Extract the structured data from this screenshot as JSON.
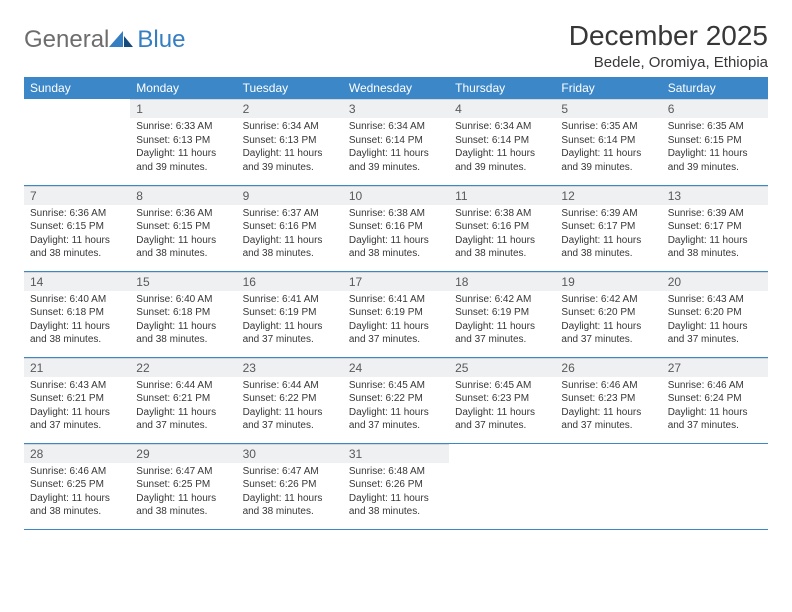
{
  "logo": {
    "text1": "General",
    "text2": "Blue"
  },
  "title": "December 2025",
  "location": "Bedele, Oromiya, Ethiopia",
  "colors": {
    "header_bg": "#3c87c7",
    "header_text": "#ffffff",
    "daynum_bg": "#eef0f2",
    "daynum_text": "#595959",
    "body_text": "#373737",
    "logo_gray": "#6d6d6d",
    "logo_blue": "#357ec2",
    "row_border": "#3c87c7"
  },
  "weekdays": [
    "Sunday",
    "Monday",
    "Tuesday",
    "Wednesday",
    "Thursday",
    "Friday",
    "Saturday"
  ],
  "weeks": [
    [
      null,
      {
        "n": "1",
        "sr": "6:33 AM",
        "ss": "6:13 PM",
        "dl": "11 hours and 39 minutes."
      },
      {
        "n": "2",
        "sr": "6:34 AM",
        "ss": "6:13 PM",
        "dl": "11 hours and 39 minutes."
      },
      {
        "n": "3",
        "sr": "6:34 AM",
        "ss": "6:14 PM",
        "dl": "11 hours and 39 minutes."
      },
      {
        "n": "4",
        "sr": "6:34 AM",
        "ss": "6:14 PM",
        "dl": "11 hours and 39 minutes."
      },
      {
        "n": "5",
        "sr": "6:35 AM",
        "ss": "6:14 PM",
        "dl": "11 hours and 39 minutes."
      },
      {
        "n": "6",
        "sr": "6:35 AM",
        "ss": "6:15 PM",
        "dl": "11 hours and 39 minutes."
      }
    ],
    [
      {
        "n": "7",
        "sr": "6:36 AM",
        "ss": "6:15 PM",
        "dl": "11 hours and 38 minutes."
      },
      {
        "n": "8",
        "sr": "6:36 AM",
        "ss": "6:15 PM",
        "dl": "11 hours and 38 minutes."
      },
      {
        "n": "9",
        "sr": "6:37 AM",
        "ss": "6:16 PM",
        "dl": "11 hours and 38 minutes."
      },
      {
        "n": "10",
        "sr": "6:38 AM",
        "ss": "6:16 PM",
        "dl": "11 hours and 38 minutes."
      },
      {
        "n": "11",
        "sr": "6:38 AM",
        "ss": "6:16 PM",
        "dl": "11 hours and 38 minutes."
      },
      {
        "n": "12",
        "sr": "6:39 AM",
        "ss": "6:17 PM",
        "dl": "11 hours and 38 minutes."
      },
      {
        "n": "13",
        "sr": "6:39 AM",
        "ss": "6:17 PM",
        "dl": "11 hours and 38 minutes."
      }
    ],
    [
      {
        "n": "14",
        "sr": "6:40 AM",
        "ss": "6:18 PM",
        "dl": "11 hours and 38 minutes."
      },
      {
        "n": "15",
        "sr": "6:40 AM",
        "ss": "6:18 PM",
        "dl": "11 hours and 38 minutes."
      },
      {
        "n": "16",
        "sr": "6:41 AM",
        "ss": "6:19 PM",
        "dl": "11 hours and 37 minutes."
      },
      {
        "n": "17",
        "sr": "6:41 AM",
        "ss": "6:19 PM",
        "dl": "11 hours and 37 minutes."
      },
      {
        "n": "18",
        "sr": "6:42 AM",
        "ss": "6:19 PM",
        "dl": "11 hours and 37 minutes."
      },
      {
        "n": "19",
        "sr": "6:42 AM",
        "ss": "6:20 PM",
        "dl": "11 hours and 37 minutes."
      },
      {
        "n": "20",
        "sr": "6:43 AM",
        "ss": "6:20 PM",
        "dl": "11 hours and 37 minutes."
      }
    ],
    [
      {
        "n": "21",
        "sr": "6:43 AM",
        "ss": "6:21 PM",
        "dl": "11 hours and 37 minutes."
      },
      {
        "n": "22",
        "sr": "6:44 AM",
        "ss": "6:21 PM",
        "dl": "11 hours and 37 minutes."
      },
      {
        "n": "23",
        "sr": "6:44 AM",
        "ss": "6:22 PM",
        "dl": "11 hours and 37 minutes."
      },
      {
        "n": "24",
        "sr": "6:45 AM",
        "ss": "6:22 PM",
        "dl": "11 hours and 37 minutes."
      },
      {
        "n": "25",
        "sr": "6:45 AM",
        "ss": "6:23 PM",
        "dl": "11 hours and 37 minutes."
      },
      {
        "n": "26",
        "sr": "6:46 AM",
        "ss": "6:23 PM",
        "dl": "11 hours and 37 minutes."
      },
      {
        "n": "27",
        "sr": "6:46 AM",
        "ss": "6:24 PM",
        "dl": "11 hours and 37 minutes."
      }
    ],
    [
      {
        "n": "28",
        "sr": "6:46 AM",
        "ss": "6:25 PM",
        "dl": "11 hours and 38 minutes."
      },
      {
        "n": "29",
        "sr": "6:47 AM",
        "ss": "6:25 PM",
        "dl": "11 hours and 38 minutes."
      },
      {
        "n": "30",
        "sr": "6:47 AM",
        "ss": "6:26 PM",
        "dl": "11 hours and 38 minutes."
      },
      {
        "n": "31",
        "sr": "6:48 AM",
        "ss": "6:26 PM",
        "dl": "11 hours and 38 minutes."
      },
      null,
      null,
      null
    ]
  ],
  "labels": {
    "sunrise": "Sunrise:",
    "sunset": "Sunset:",
    "daylight": "Daylight:"
  }
}
